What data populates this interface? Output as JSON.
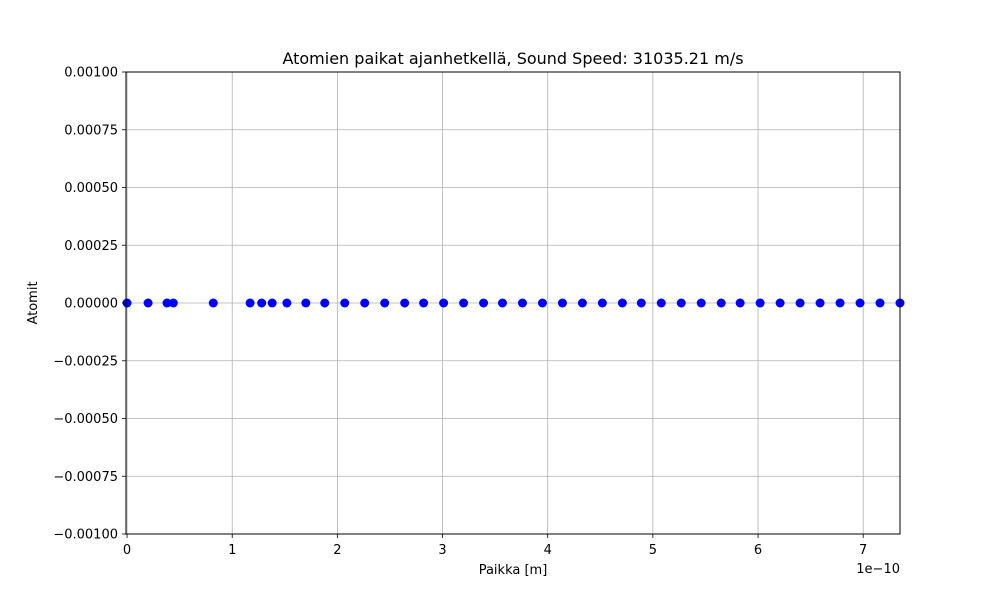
{
  "chart_data": {
    "type": "scatter",
    "title": "Atomien paikat ajanhetkellä, Sound Speed: 31035.21 m/s",
    "xlabel": "Paikka [m]",
    "ylabel": "Atomit",
    "x_offset_label": "1e−10",
    "xlim": [
      -0.01,
      7.35
    ],
    "ylim": [
      -0.001,
      0.001
    ],
    "x_scale_factor": 1e-10,
    "x_ticks": [
      0,
      1,
      2,
      3,
      4,
      5,
      6,
      7
    ],
    "x_tick_labels": [
      "0",
      "1",
      "2",
      "3",
      "4",
      "5",
      "6",
      "7"
    ],
    "y_ticks": [
      -0.001,
      -0.00075,
      -0.0005,
      -0.00025,
      0,
      0.00025,
      0.0005,
      0.00075,
      0.001
    ],
    "y_tick_labels": [
      "−0.00100",
      "−0.00075",
      "−0.00050",
      "−0.00025",
      "0.00000",
      "0.00025",
      "0.00050",
      "0.00075",
      "0.00100"
    ],
    "grid": true,
    "marker_color": "#0000ff",
    "series": [
      {
        "x": [
          0.0,
          0.2,
          0.38,
          0.44,
          0.82,
          1.17,
          1.28,
          1.38,
          1.52,
          1.7,
          1.88,
          2.07,
          2.26,
          2.45,
          2.64,
          2.82,
          3.01,
          3.2,
          3.39,
          3.57,
          3.76,
          3.95,
          4.14,
          4.33,
          4.52,
          4.71,
          4.89,
          5.08,
          5.27,
          5.46,
          5.65,
          5.83,
          6.02,
          6.21,
          6.4,
          6.59,
          6.78,
          6.97,
          7.16,
          7.35
        ],
        "y": [
          0,
          0,
          0,
          0,
          0,
          0,
          0,
          0,
          0,
          0,
          0,
          0,
          0,
          0,
          0,
          0,
          0,
          0,
          0,
          0,
          0,
          0,
          0,
          0,
          0,
          0,
          0,
          0,
          0,
          0,
          0,
          0,
          0,
          0,
          0,
          0,
          0,
          0,
          0,
          0
        ]
      }
    ]
  }
}
